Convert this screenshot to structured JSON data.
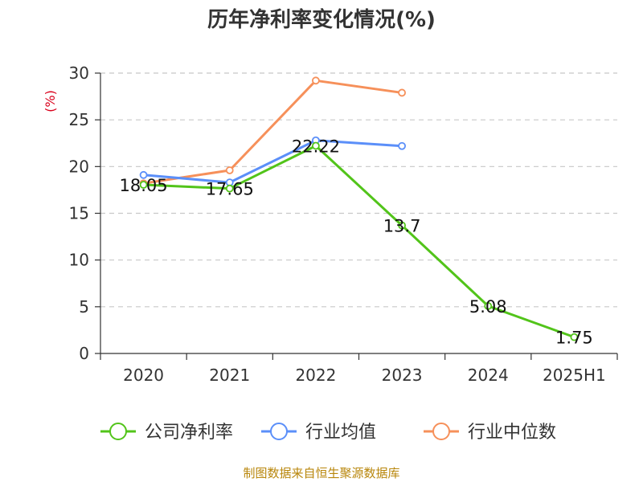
{
  "chart_data": {
    "type": "line",
    "title": "历年净利率变化情况(%)",
    "ylabel": "(%)",
    "categories": [
      "2020",
      "2021",
      "2022",
      "2023",
      "2024",
      "2025H1"
    ],
    "ylim": [
      0,
      30
    ],
    "yticks": [
      0,
      5,
      10,
      15,
      20,
      25,
      30
    ],
    "grid": true,
    "legend_position": "bottom",
    "series": [
      {
        "name": "公司净利率",
        "color": "#52c41a",
        "values": [
          18.05,
          17.65,
          22.22,
          13.7,
          5.08,
          1.75
        ],
        "labels": [
          "18.05",
          "17.65",
          "22.22",
          "13.7",
          "5.08",
          "1.75"
        ]
      },
      {
        "name": "行业均值",
        "color": "#5b8ff9",
        "values": [
          19.1,
          18.3,
          22.8,
          22.2,
          null,
          null
        ]
      },
      {
        "name": "行业中位数",
        "color": "#f6905a",
        "values": [
          18.2,
          19.6,
          29.2,
          27.9,
          null,
          null
        ]
      }
    ]
  },
  "source": "制图数据来自恒生聚源数据库"
}
